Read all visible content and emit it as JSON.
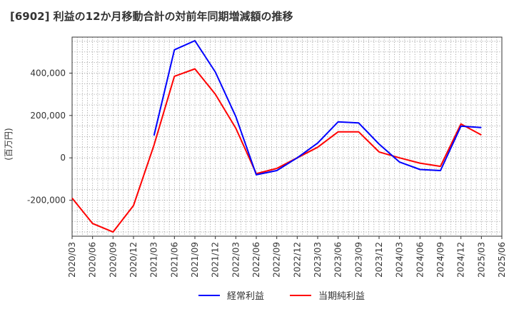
{
  "chart_data": {
    "type": "line",
    "title": "[6902]  利益の12か月移動合計の対前年同期増減額の推移",
    "ylabel": "(百万円)",
    "xlabel": "",
    "ylim": [
      -370000,
      570000
    ],
    "yticks": [
      400000,
      200000,
      0,
      -200000
    ],
    "ytick_labels": [
      "400,000",
      "200,000",
      "0",
      "-200,000"
    ],
    "categories": [
      "2020/03",
      "2020/06",
      "2020/09",
      "2020/12",
      "2021/03",
      "2021/06",
      "2021/09",
      "2021/12",
      "2022/03",
      "2022/06",
      "2022/09",
      "2022/12",
      "2023/03",
      "2023/06",
      "2023/09",
      "2023/12",
      "2024/03",
      "2024/06",
      "2024/09",
      "2024/12",
      "2025/03",
      "2025/06"
    ],
    "grid": true,
    "series": [
      {
        "name": "経常利益",
        "color": "#0000ff",
        "values": [
          null,
          null,
          null,
          null,
          105000,
          510000,
          553000,
          405000,
          195000,
          -80000,
          -60000,
          0,
          70000,
          170000,
          165000,
          65000,
          -20000,
          -55000,
          -60000,
          150000,
          143000,
          null
        ]
      },
      {
        "name": "当期純利益",
        "color": "#ff0000",
        "values": [
          -190000,
          -310000,
          -350000,
          -225000,
          60000,
          385000,
          420000,
          300000,
          140000,
          -75000,
          -50000,
          0,
          50000,
          123000,
          123000,
          28000,
          0,
          -25000,
          -40000,
          160000,
          108000,
          null
        ]
      }
    ],
    "legend_position": "bottom"
  }
}
